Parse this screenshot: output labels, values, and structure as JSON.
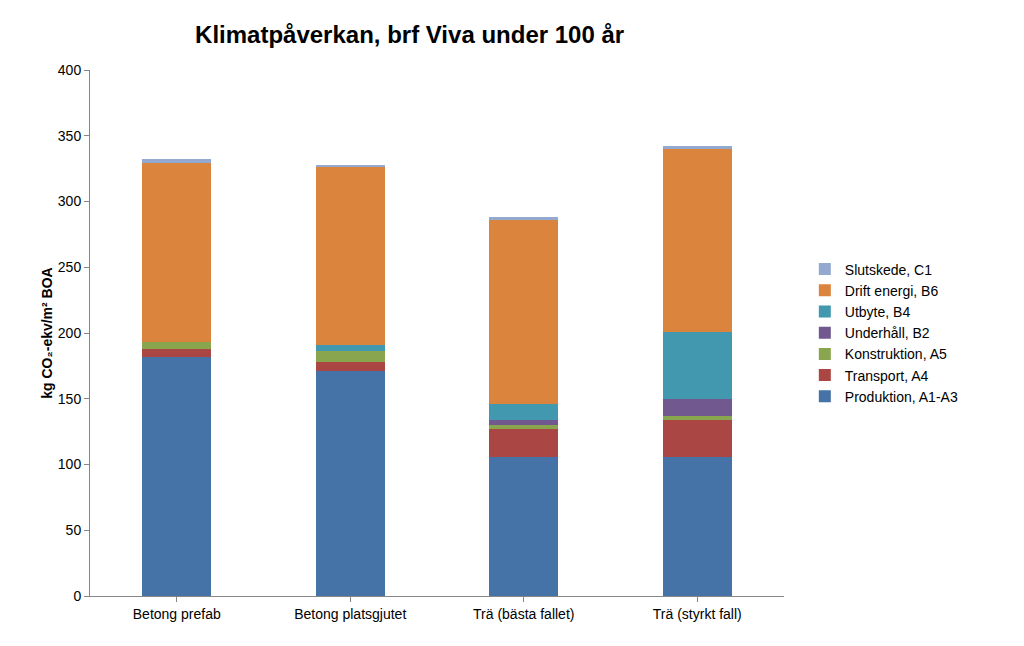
{
  "chart_data": {
    "type": "bar",
    "stacked": true,
    "title": "Klimatpåverkan, brf Viva under 100 år",
    "y_label": "kg CO₂-ekv/m² BOA",
    "categories": [
      "Betong prefab",
      "Betong platsgjutet",
      "Trä (bästa fallet)",
      "Trä (styrkt fall)"
    ],
    "series": [
      {
        "name": "Produktion, A1-A3",
        "color": "#4572a7",
        "values": [
          182,
          171,
          106,
          106
        ]
      },
      {
        "name": "Transport, A4",
        "color": "#aa4643",
        "values": [
          6,
          7,
          21,
          28
        ]
      },
      {
        "name": "Konstruktion, A5",
        "color": "#89a54e",
        "values": [
          5,
          8,
          3,
          3
        ]
      },
      {
        "name": "Underhåll, B2",
        "color": "#71588f",
        "values": [
          0,
          0,
          4,
          13
        ]
      },
      {
        "name": "Utbyte, B4",
        "color": "#4198af",
        "values": [
          0,
          5,
          12,
          51
        ]
      },
      {
        "name": "Drift energi, B6",
        "color": "#db843d",
        "values": [
          136,
          135,
          140,
          139
        ]
      },
      {
        "name": "Slutskede, C1",
        "color": "#93a9cf",
        "values": [
          3,
          2,
          2,
          2
        ]
      }
    ],
    "ylim": [
      0,
      400
    ],
    "yticks": [
      0,
      50,
      100,
      150,
      200,
      250,
      300,
      350,
      400
    ],
    "grid": false,
    "legend": "right"
  }
}
